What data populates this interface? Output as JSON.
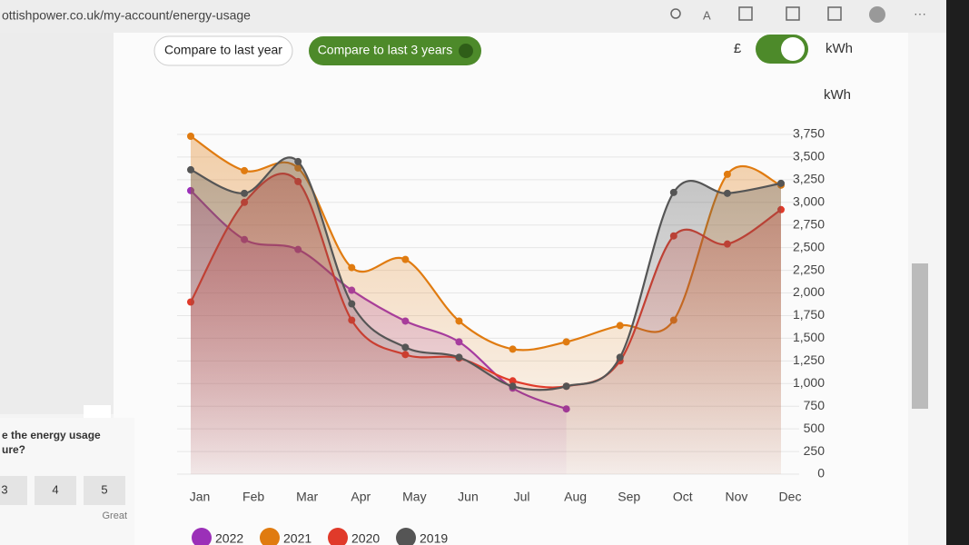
{
  "page": {
    "url": "ottishpower.co.uk/my-account/energy-usage",
    "compare_last_year": "Compare to last year",
    "compare_last_3_years": "Compare to last 3 years",
    "toggle_left": "£",
    "toggle_right": "kWh",
    "survey_line1": "e the energy usage",
    "survey_line2": "ure?",
    "ratings": [
      "3",
      "4",
      "5"
    ],
    "rating_hint": "Great"
  },
  "chart_data": {
    "type": "line",
    "y_axis_label": "kWh",
    "categories": [
      "Jan",
      "Feb",
      "Mar",
      "Apr",
      "May",
      "Jun",
      "Jul",
      "Aug",
      "Sep",
      "Oct",
      "Nov",
      "Dec"
    ],
    "ylim": [
      0,
      3750
    ],
    "yticks": [
      0,
      250,
      500,
      750,
      {
        "value": 1000,
        "label": "1,000"
      },
      {
        "value": 1250,
        "label": "1,250"
      },
      {
        "value": 1500,
        "label": "1,500"
      },
      {
        "value": 1750,
        "label": "1,750"
      },
      {
        "value": 2000,
        "label": "2,000"
      },
      {
        "value": 2250,
        "label": "2,250"
      },
      {
        "value": 2500,
        "label": "2,500"
      },
      {
        "value": 2750,
        "label": "2,750"
      },
      {
        "value": 3000,
        "label": "3,000"
      },
      {
        "value": 3250,
        "label": "3,250"
      },
      {
        "value": 3500,
        "label": "3,500"
      },
      {
        "value": 3750,
        "label": "3,750"
      }
    ],
    "grid": true,
    "legend": "bottom",
    "series": [
      {
        "name": "2022",
        "color": "#9b30b8",
        "values": [
          3130,
          2590,
          2480,
          2030,
          1690,
          1460,
          950,
          720,
          null,
          null,
          null,
          null
        ]
      },
      {
        "name": "2021",
        "color": "#e07b10",
        "values": [
          3730,
          3350,
          3380,
          2280,
          2370,
          1690,
          1380,
          1460,
          1640,
          1700,
          3310,
          3190
        ]
      },
      {
        "name": "2020",
        "color": "#e03a2a",
        "values": [
          1900,
          3000,
          3230,
          1700,
          1320,
          1280,
          1030,
          970,
          1250,
          2630,
          2540,
          2920
        ]
      },
      {
        "name": "2019",
        "color": "#555555",
        "values": [
          3360,
          3100,
          3450,
          1880,
          1400,
          1290,
          970,
          970,
          1290,
          3110,
          3100,
          3210
        ]
      }
    ]
  }
}
